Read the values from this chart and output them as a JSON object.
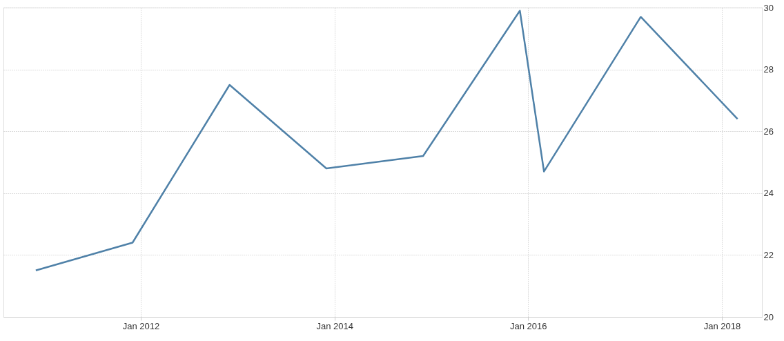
{
  "chart_data": {
    "type": "line",
    "x": [
      "2010-12",
      "2011-12",
      "2012-12",
      "2013-12",
      "2014-12",
      "2015-12",
      "2016-03",
      "2017-03",
      "2018-03"
    ],
    "series": [
      {
        "color": "#4f81a8",
        "values": [
          21.5,
          22.4,
          27.5,
          24.8,
          25.2,
          29.9,
          24.7,
          29.7,
          26.4
        ]
      }
    ],
    "xlim": [
      "2010-08",
      "2018-06"
    ],
    "xticks": [
      {
        "value": "2012-01",
        "label": "Jan 2012"
      },
      {
        "value": "2014-01",
        "label": "Jan 2014"
      },
      {
        "value": "2016-01",
        "label": "Jan 2016"
      },
      {
        "value": "2018-01",
        "label": "Jan 2018"
      }
    ],
    "ylim": [
      20,
      30
    ],
    "yticks": [
      20,
      22,
      24,
      26,
      28,
      30
    ],
    "grid": true,
    "marker": "none",
    "line_style": "solid"
  }
}
